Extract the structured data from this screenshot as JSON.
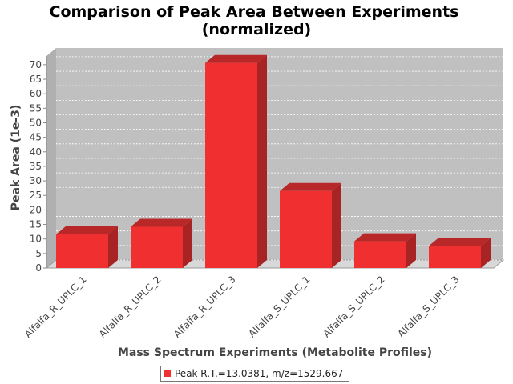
{
  "chart_data": {
    "type": "bar",
    "title_line1": "Comparison of Peak Area Between Experiments",
    "title_line2": "(normalized)",
    "xlabel": "Mass Spectrum Experiments (Metabolite Profiles)",
    "ylabel": "Peak Area (1e-3)",
    "categories": [
      "Alfalfa_R_UPLC_1",
      "Alfalfa_R_UPLC_2",
      "Alfalfa_R_UPLC_3",
      "Alfalfa_S_UPLC_1",
      "Alfalfa_S_UPLC_2",
      "Alfalfa_S_UPLC_3"
    ],
    "series": [
      {
        "name": "Peak R.T.=13.0381, m/z=1529.667",
        "values": [
          11.6,
          14.2,
          70.6,
          26.5,
          9.2,
          7.6
        ]
      }
    ],
    "ylim": [
      0,
      73
    ],
    "yticks": [
      0,
      5,
      10,
      15,
      20,
      25,
      30,
      35,
      40,
      45,
      50,
      55,
      60,
      65,
      70
    ],
    "grid": true,
    "legend_position": "bottom",
    "colors": {
      "bar_front": "#f03030",
      "bar_top": "#b82828",
      "bar_side": "#a82424",
      "plot_bg": "#c0c0c0",
      "floor": "#d8d8d8"
    }
  }
}
